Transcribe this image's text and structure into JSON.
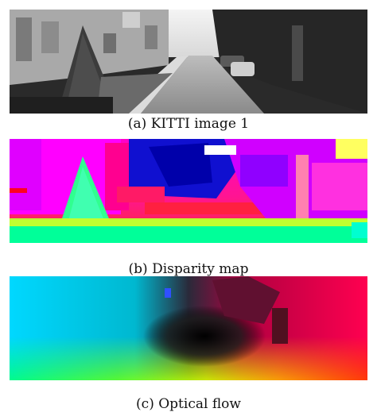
{
  "figure": {
    "panels": [
      {
        "id": "a",
        "caption": "(a) KITTI image 1"
      },
      {
        "id": "b",
        "caption": "(b) Disparity map"
      },
      {
        "id": "c",
        "caption": "(c) Optical flow"
      }
    ]
  }
}
